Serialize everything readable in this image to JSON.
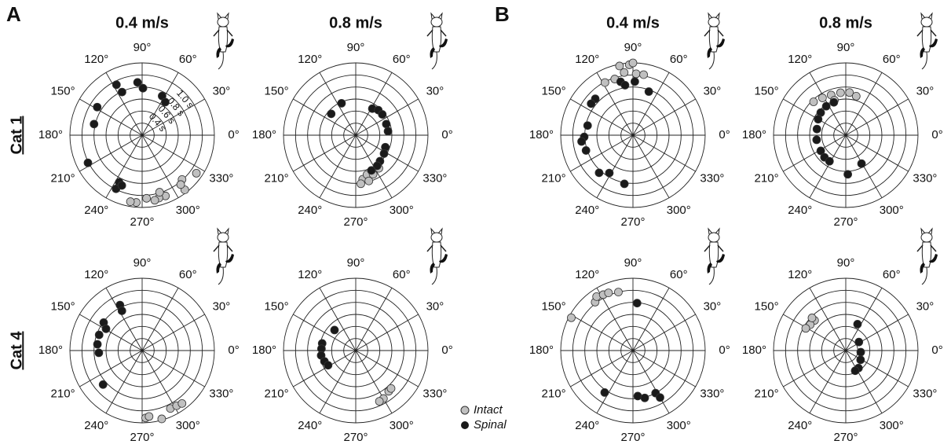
{
  "panel_labels": [
    "A",
    "B"
  ],
  "speed_labels": [
    "0.4 m/s",
    "0.8 m/s"
  ],
  "row_labels": [
    "Cat 1",
    "Cat 4"
  ],
  "chart_data": [
    {
      "type": "polar-scatter",
      "rlim": [
        0,
        1.2
      ],
      "rgrid": [
        0.2,
        0.4,
        0.6,
        0.8,
        1.0,
        1.2
      ],
      "rticks": [
        {
          "value": 0.4,
          "label": "0.4 s"
        },
        {
          "value": 0.6,
          "label": "0.6 s"
        },
        {
          "value": 0.8,
          "label": "0.8 s"
        },
        {
          "value": 1.0,
          "label": "1.0 s"
        }
      ],
      "theta_ticks": [
        {
          "value": 0,
          "label": "0°"
        },
        {
          "value": 30,
          "label": "30°"
        },
        {
          "value": 60,
          "label": "60°"
        },
        {
          "value": 90,
          "label": "90°"
        },
        {
          "value": 120,
          "label": "120°"
        },
        {
          "value": 150,
          "label": "150°"
        },
        {
          "value": 180,
          "label": "180°"
        },
        {
          "value": 210,
          "label": "210°"
        },
        {
          "value": 240,
          "label": "240°"
        },
        {
          "value": 270,
          "label": "270°"
        },
        {
          "value": 300,
          "label": "300°"
        },
        {
          "value": 330,
          "label": "330°"
        }
      ],
      "series": [
        {
          "name": "Intact",
          "color": "#c0c0c0",
          "theta": [
            325,
            312,
            308,
            308,
            291,
            285,
            281,
            274,
            265,
            260,
            287
          ],
          "r": [
            1.1,
            0.99,
            1.15,
            1.04,
            1.08,
            1.08,
            1.1,
            1.05,
            1.12,
            1.12,
            0.99
          ]
        },
        {
          "name": "Spinal",
          "color": "#1a1a1a",
          "theta": [
            117,
            95,
            89,
            63,
            55,
            115,
            148,
            167,
            207,
            244,
            244,
            248
          ],
          "r": [
            0.94,
            0.88,
            0.78,
            0.73,
            0.67,
            0.79,
            0.88,
            0.82,
            1.01,
            0.87,
            0.99,
            0.9
          ]
        }
      ]
    },
    {
      "type": "polar-scatter",
      "rlim": [
        0,
        1.2
      ],
      "rgrid": [
        0.2,
        0.4,
        0.6,
        0.8,
        1.0,
        1.2
      ],
      "theta_ticks": [
        {
          "value": 0,
          "label": "0°"
        },
        {
          "value": 30,
          "label": "30°"
        },
        {
          "value": 60,
          "label": "60°"
        },
        {
          "value": 90,
          "label": "90°"
        },
        {
          "value": 120,
          "label": "120°"
        },
        {
          "value": 150,
          "label": "150°"
        },
        {
          "value": 180,
          "label": "180°"
        },
        {
          "value": 210,
          "label": "210°"
        },
        {
          "value": 240,
          "label": "240°"
        },
        {
          "value": 270,
          "label": "270°"
        },
        {
          "value": 300,
          "label": "300°"
        },
        {
          "value": 330,
          "label": "330°"
        }
      ],
      "series": [
        {
          "name": "Intact",
          "color": "#c0c0c0",
          "theta": [
            279,
            286,
            294,
            305,
            276,
            286
          ],
          "r": [
            0.74,
            0.68,
            0.71,
            0.67,
            0.81,
            0.79
          ]
        },
        {
          "name": "Spinal",
          "color": "#1a1a1a",
          "theta": [
            114,
            139,
            58,
            48,
            38,
            20,
            7,
            338,
            327,
            313,
            305,
            294
          ],
          "r": [
            0.58,
            0.54,
            0.52,
            0.56,
            0.56,
            0.54,
            0.54,
            0.53,
            0.56,
            0.59,
            0.62,
            0.64
          ]
        }
      ]
    },
    {
      "type": "polar-scatter",
      "rlim": [
        0,
        1.2
      ],
      "rgrid": [
        0.2,
        0.4,
        0.6,
        0.8,
        1.0,
        1.2
      ],
      "theta_ticks": [
        {
          "value": 0,
          "label": "0°"
        },
        {
          "value": 30,
          "label": "30°"
        },
        {
          "value": 60,
          "label": "60°"
        },
        {
          "value": 90,
          "label": "90°"
        },
        {
          "value": 120,
          "label": "120°"
        },
        {
          "value": 150,
          "label": "150°"
        },
        {
          "value": 180,
          "label": "180°"
        },
        {
          "value": 210,
          "label": "210°"
        },
        {
          "value": 240,
          "label": "240°"
        },
        {
          "value": 270,
          "label": "270°"
        },
        {
          "value": 300,
          "label": "300°"
        },
        {
          "value": 330,
          "label": "330°"
        }
      ],
      "series": [
        {
          "name": "Intact",
          "color": "#c0c0c0",
          "theta": [
            273,
            276,
            286,
            296,
            302,
            307
          ],
          "r": [
            1.12,
            1.1,
            1.18,
            1.07,
            1.08,
            1.1
          ]
        },
        {
          "name": "Spinal",
          "color": "#1a1a1a",
          "theta": [
            116,
            117,
            144,
            149,
            160,
            172,
            183,
            221
          ],
          "r": [
            0.84,
            0.74,
            0.79,
            0.7,
            0.76,
            0.75,
            0.72,
            0.86
          ]
        }
      ]
    },
    {
      "type": "polar-scatter",
      "rlim": [
        0,
        1.2
      ],
      "rgrid": [
        0.2,
        0.4,
        0.6,
        0.8,
        1.0,
        1.2
      ],
      "theta_ticks": [
        {
          "value": 0,
          "label": "0°"
        },
        {
          "value": 30,
          "label": "30°"
        },
        {
          "value": 60,
          "label": "60°"
        },
        {
          "value": 90,
          "label": "90°"
        },
        {
          "value": 120,
          "label": "120°"
        },
        {
          "value": 150,
          "label": "150°"
        },
        {
          "value": 180,
          "label": "180°"
        },
        {
          "value": 210,
          "label": "210°"
        },
        {
          "value": 240,
          "label": "240°"
        },
        {
          "value": 270,
          "label": "270°"
        },
        {
          "value": 300,
          "label": "300°"
        },
        {
          "value": 330,
          "label": "330°"
        }
      ],
      "series": [
        {
          "name": "Intact",
          "color": "#c0c0c0",
          "theta": [
            309,
            313,
            300,
            295
          ],
          "r": [
            0.87,
            0.86,
            0.92,
            0.93
          ]
        },
        {
          "name": "Spinal",
          "color": "#1a1a1a",
          "theta": [
            136,
            168,
            177,
            188,
            199,
            208
          ],
          "r": [
            0.49,
            0.57,
            0.57,
            0.58,
            0.55,
            0.52
          ]
        }
      ]
    },
    {
      "type": "polar-scatter",
      "rlim": [
        0,
        1.2
      ],
      "rgrid": [
        0.2,
        0.4,
        0.6,
        0.8,
        1.0,
        1.2
      ],
      "theta_ticks": [
        {
          "value": 0,
          "label": "0°"
        },
        {
          "value": 30,
          "label": "30°"
        },
        {
          "value": 60,
          "label": "60°"
        },
        {
          "value": 90,
          "label": "90°"
        },
        {
          "value": 120,
          "label": "120°"
        },
        {
          "value": 150,
          "label": "150°"
        },
        {
          "value": 180,
          "label": "180°"
        },
        {
          "value": 210,
          "label": "210°"
        },
        {
          "value": 240,
          "label": "240°"
        },
        {
          "value": 270,
          "label": "270°"
        },
        {
          "value": 300,
          "label": "300°"
        },
        {
          "value": 330,
          "label": "330°"
        }
      ],
      "series": [
        {
          "name": "Intact",
          "color": "#c0c0c0",
          "theta": [
            101,
            93,
            90,
            98,
            87,
            80,
            118,
            108
          ],
          "r": [
            1.17,
            1.17,
            1.2,
            1.05,
            1.02,
            1.02,
            0.99,
            0.98
          ]
        },
        {
          "name": "Spinal",
          "color": "#1a1a1a",
          "theta": [
            103,
            99,
            88,
            70,
            136,
            143,
            168,
            182,
            187,
            198,
            228,
            238,
            260
          ],
          "r": [
            0.91,
            0.84,
            0.89,
            0.77,
            0.87,
            0.87,
            0.77,
            0.81,
            0.86,
            0.82,
            0.84,
            0.74,
            0.82
          ]
        }
      ]
    },
    {
      "type": "polar-scatter",
      "rlim": [
        0,
        1.2
      ],
      "rgrid": [
        0.2,
        0.4,
        0.6,
        0.8,
        1.0,
        1.2
      ],
      "theta_ticks": [
        {
          "value": 0,
          "label": "0°"
        },
        {
          "value": 30,
          "label": "30°"
        },
        {
          "value": 60,
          "label": "60°"
        },
        {
          "value": 90,
          "label": "90°"
        },
        {
          "value": 120,
          "label": "120°"
        },
        {
          "value": 150,
          "label": "150°"
        },
        {
          "value": 180,
          "label": "180°"
        },
        {
          "value": 210,
          "label": "210°"
        },
        {
          "value": 240,
          "label": "240°"
        },
        {
          "value": 270,
          "label": "270°"
        },
        {
          "value": 300,
          "label": "300°"
        },
        {
          "value": 330,
          "label": "330°"
        }
      ],
      "series": [
        {
          "name": "Intact",
          "color": "#c0c0c0",
          "theta": [
            134,
            122,
            110,
            97,
            85,
            75,
            108
          ],
          "r": [
            0.77,
            0.73,
            0.71,
            0.71,
            0.71,
            0.67,
            0.61
          ]
        },
        {
          "name": "Spinal",
          "color": "#1a1a1a",
          "theta": [
            124,
            138,
            150,
            168,
            189,
            212,
            226,
            238,
            273,
            299,
            110
          ],
          "r": [
            0.58,
            0.56,
            0.53,
            0.49,
            0.49,
            0.49,
            0.51,
            0.51,
            0.65,
            0.54,
            0.58
          ]
        }
      ]
    },
    {
      "type": "polar-scatter",
      "rlim": [
        0,
        1.2
      ],
      "rgrid": [
        0.2,
        0.4,
        0.6,
        0.8,
        1.0,
        1.2
      ],
      "theta_ticks": [
        {
          "value": 0,
          "label": "0°"
        },
        {
          "value": 30,
          "label": "30°"
        },
        {
          "value": 60,
          "label": "60°"
        },
        {
          "value": 90,
          "label": "90°"
        },
        {
          "value": 120,
          "label": "120°"
        },
        {
          "value": 150,
          "label": "150°"
        },
        {
          "value": 180,
          "label": "180°"
        },
        {
          "value": 210,
          "label": "210°"
        },
        {
          "value": 240,
          "label": "240°"
        },
        {
          "value": 270,
          "label": "270°"
        },
        {
          "value": 300,
          "label": "300°"
        },
        {
          "value": 330,
          "label": "330°"
        }
      ],
      "series": [
        {
          "name": "Intact",
          "color": "#c0c0c0",
          "theta": [
            152,
            128,
            124,
            118,
            113,
            104
          ],
          "r": [
            1.16,
            1.02,
            1.08,
            1.05,
            1.04,
            1.0
          ]
        },
        {
          "name": "Spinal",
          "color": "#1a1a1a",
          "theta": [
            85,
            236,
            276,
            284,
            298,
            300
          ],
          "r": [
            0.79,
            0.84,
            0.76,
            0.81,
            0.8,
            0.9
          ]
        }
      ]
    },
    {
      "type": "polar-scatter",
      "rlim": [
        0,
        1.2
      ],
      "rgrid": [
        0.2,
        0.4,
        0.6,
        0.8,
        1.0,
        1.2
      ],
      "theta_ticks": [
        {
          "value": 0,
          "label": "0°"
        },
        {
          "value": 30,
          "label": "30°"
        },
        {
          "value": 60,
          "label": "60°"
        },
        {
          "value": 90,
          "label": "90°"
        },
        {
          "value": 120,
          "label": "120°"
        },
        {
          "value": 150,
          "label": "150°"
        },
        {
          "value": 180,
          "label": "180°"
        },
        {
          "value": 210,
          "label": "210°"
        },
        {
          "value": 240,
          "label": "240°"
        },
        {
          "value": 270,
          "label": "270°"
        },
        {
          "value": 300,
          "label": "300°"
        },
        {
          "value": 330,
          "label": "330°"
        }
      ],
      "series": [
        {
          "name": "Intact",
          "color": "#c0c0c0",
          "theta": [
            136,
            144,
            151,
            136
          ],
          "r": [
            0.72,
            0.73,
            0.76,
            0.78
          ]
        },
        {
          "name": "Spinal",
          "color": "#1a1a1a",
          "theta": [
            66,
            33,
            354,
            328,
            306,
            295
          ],
          "r": [
            0.48,
            0.26,
            0.25,
            0.29,
            0.36,
            0.37
          ]
        }
      ]
    }
  ]
}
